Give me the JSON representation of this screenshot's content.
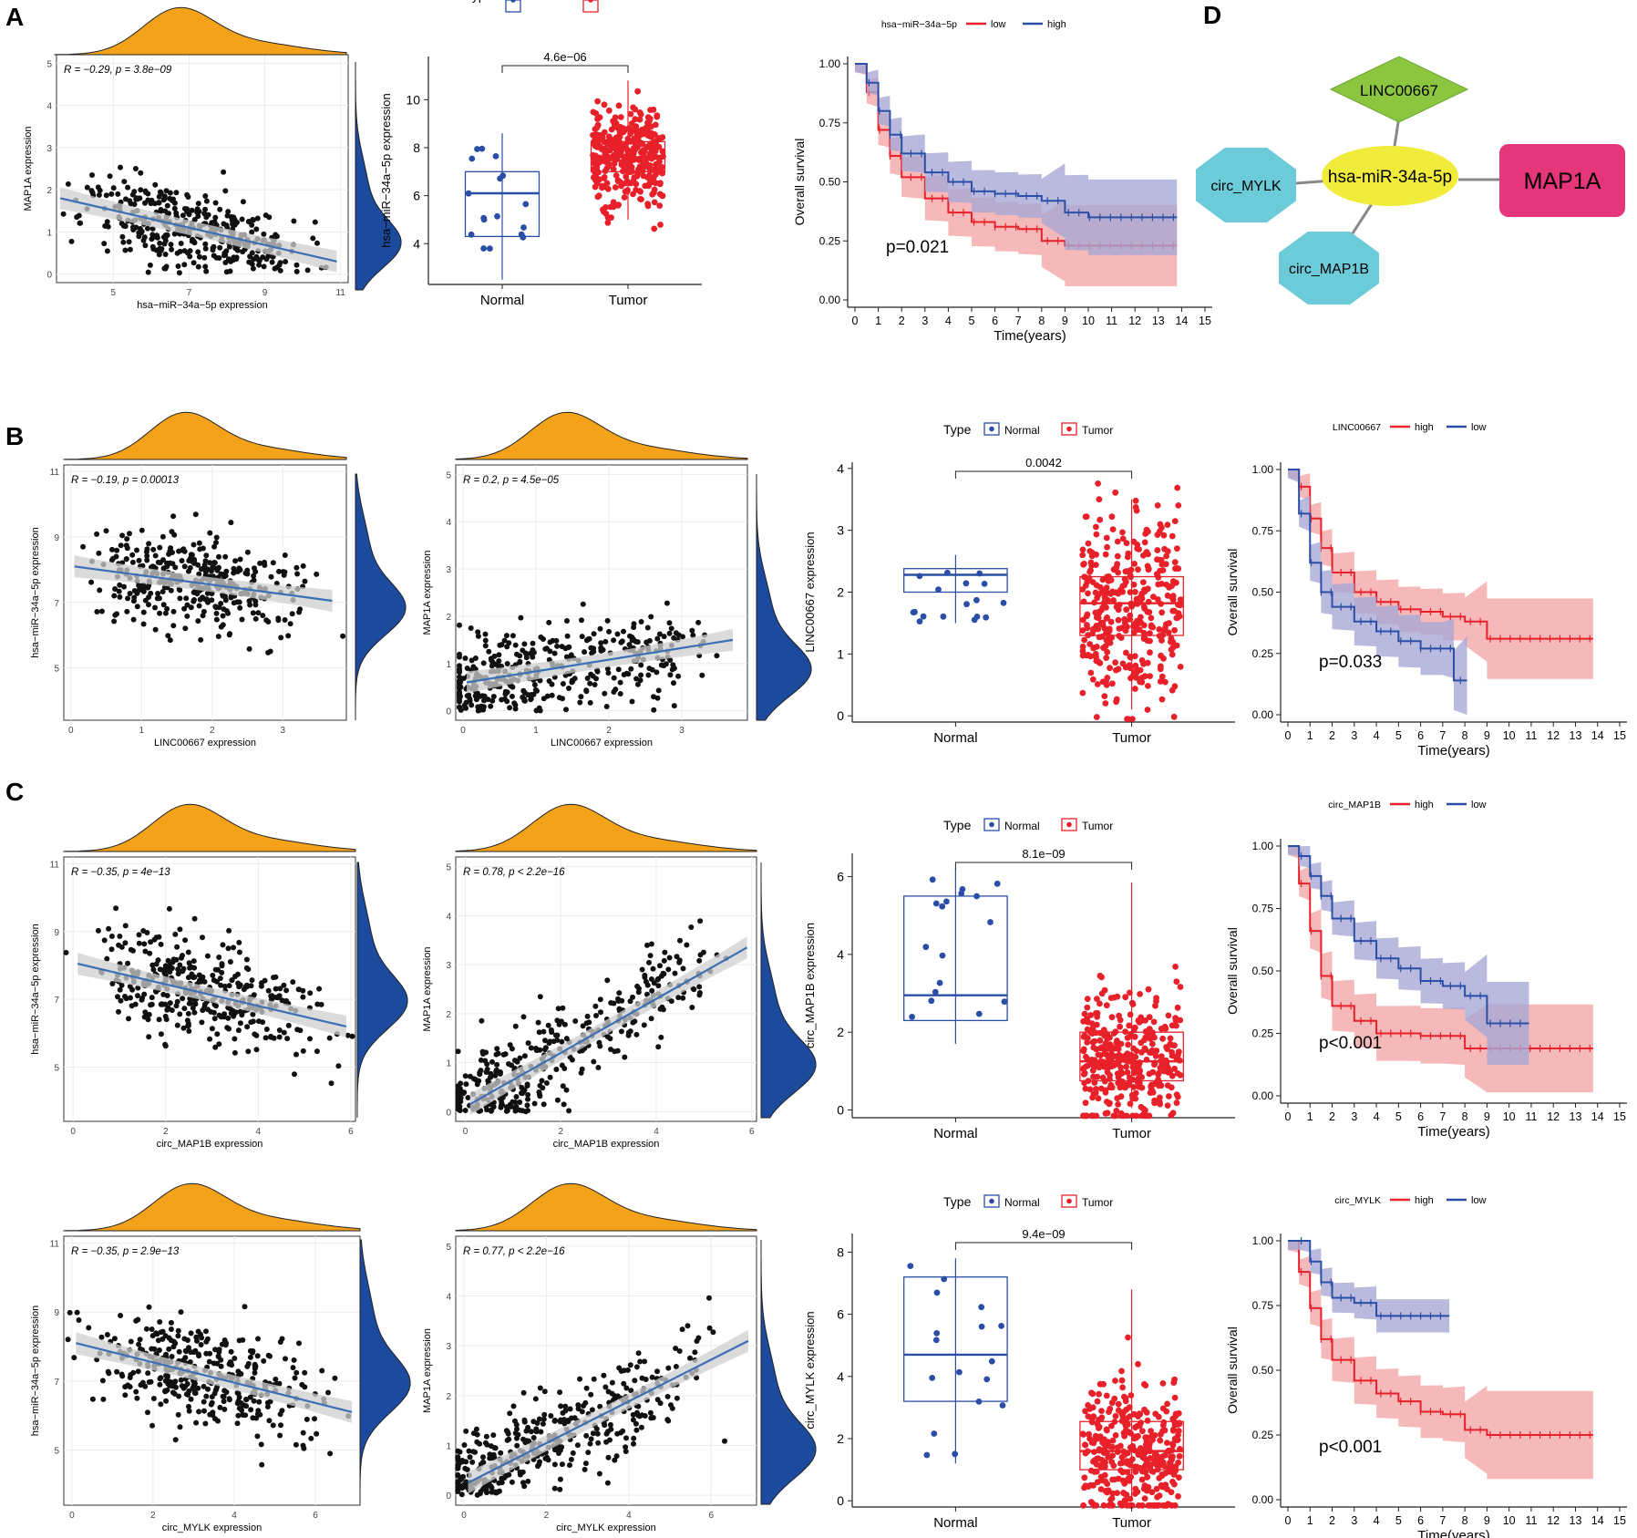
{
  "panel_labels": [
    "A",
    "B",
    "C",
    "D"
  ],
  "colors": {
    "normal": "#2a4ea6",
    "tumor": "#e8202a",
    "km_red": "#e8202a",
    "km_blue": "#2b4fa6",
    "km_red_fill": "#f3a7a9",
    "km_blue_fill": "#a9a7d6",
    "density_top": "#f5a21b",
    "density_right": "#1c4a9c",
    "fit_line": "#3b6fb6",
    "fit_band": "#cfcfcf",
    "node_lncrna": "#8cc63f",
    "node_mirna": "#f1ec3b",
    "node_mrna": "#e5357b",
    "node_circ": "#6ccbd8"
  },
  "network": {
    "mirna": "hsa-miR-34a-5p",
    "mrna": "MAP1A",
    "lncrna": "LINC00667",
    "circ1": "circ_MYLK",
    "circ2": "circ_MAP1B"
  },
  "chart_data": [
    {
      "id": "A1",
      "type": "scatter",
      "xlabel": "hsa−miR−34a−5p expression",
      "ylabel": "MAP1A expression",
      "annotation": "R = −0.29, p = 3.8e−09",
      "xlim": [
        3.5,
        11.2
      ],
      "ylim": [
        -0.2,
        5.2
      ],
      "xticks": [
        5,
        7,
        9,
        11
      ],
      "yticks": [
        0,
        1,
        2,
        3,
        4,
        5
      ],
      "fit": {
        "x": [
          3.6,
          10.9
        ],
        "y": [
          1.8,
          0.3
        ]
      },
      "trend": "negative"
    },
    {
      "id": "A2",
      "type": "box",
      "categories": [
        "Normal",
        "Tumor"
      ],
      "legend_title": "Type",
      "ylabel": "hsa−miR−34a−5p expression",
      "ylim": [
        2.3,
        11.8
      ],
      "yticks": [
        4,
        6,
        8,
        10
      ],
      "pvalue": "4.6e−06",
      "boxes": [
        {
          "q1": 4.3,
          "median": 6.1,
          "q3": 7.0,
          "min": 2.5,
          "max": 8.6
        },
        {
          "q1": 7.0,
          "median": 7.6,
          "q3": 8.25,
          "min": 5.0,
          "max": 10.8
        }
      ]
    },
    {
      "id": "A3",
      "type": "km",
      "legend_title": "hsa−miR−34a−5p",
      "groups": [
        "low",
        "high"
      ],
      "pvalue": "p=0.021",
      "xlabel": "Time(years)",
      "ylabel": "Overall survival",
      "xticks": [
        0,
        1,
        2,
        3,
        4,
        5,
        6,
        7,
        8,
        9,
        10,
        11,
        12,
        13,
        14,
        15
      ],
      "yticks": [
        "0.00",
        "0.25",
        "0.50",
        "0.75",
        "1.00"
      ],
      "curves": [
        {
          "name": "low",
          "x": [
            0,
            0.5,
            1,
            1.5,
            2,
            3,
            4,
            5,
            6,
            7,
            8,
            9,
            10,
            12,
            13.8
          ],
          "y": [
            1,
            0.88,
            0.72,
            0.61,
            0.52,
            0.43,
            0.37,
            0.33,
            0.31,
            0.3,
            0.25,
            0.23,
            0.23,
            0.23,
            0.23
          ]
        },
        {
          "name": "high",
          "x": [
            0,
            0.5,
            1,
            1.5,
            2,
            3,
            4,
            5,
            6,
            7,
            8,
            9,
            10,
            12,
            13.8
          ],
          "y": [
            1,
            0.92,
            0.8,
            0.7,
            0.62,
            0.54,
            0.5,
            0.46,
            0.45,
            0.44,
            0.42,
            0.37,
            0.35,
            0.35,
            0.35
          ]
        }
      ]
    },
    {
      "id": "B1",
      "type": "scatter",
      "xlabel": "LINC00667 expression",
      "ylabel": "hsa−miR−34a−5p expression",
      "annotation": "R = −0.19, p = 0.00013",
      "xlim": [
        -0.1,
        3.9
      ],
      "ylim": [
        3.4,
        11.2
      ],
      "xticks": [
        0,
        1,
        2,
        3
      ],
      "yticks": [
        5,
        7,
        9,
        11
      ],
      "fit": {
        "x": [
          0.05,
          3.7
        ],
        "y": [
          8.1,
          7.05
        ]
      },
      "trend": "negative"
    },
    {
      "id": "B2",
      "type": "scatter",
      "xlabel": "LINC00667 expression",
      "ylabel": "MAP1A expression",
      "annotation": "R = 0.2, p = 4.5e−05",
      "xlim": [
        -0.1,
        3.9
      ],
      "ylim": [
        -0.2,
        5.2
      ],
      "xticks": [
        0,
        1,
        2,
        3
      ],
      "yticks": [
        0,
        1,
        2,
        3,
        4,
        5
      ],
      "fit": {
        "x": [
          0.05,
          3.7
        ],
        "y": [
          0.6,
          1.5
        ]
      },
      "trend": "positive"
    },
    {
      "id": "B3",
      "type": "box",
      "categories": [
        "Normal",
        "Tumor"
      ],
      "legend_title": "Type",
      "ylabel": "LINC00667 expression",
      "ylim": [
        -0.1,
        4.1
      ],
      "yticks": [
        0,
        1,
        2,
        3,
        4
      ],
      "pvalue": "0.0042",
      "boxes": [
        {
          "q1": 2.0,
          "median": 2.28,
          "q3": 2.38,
          "min": 1.5,
          "max": 2.6
        },
        {
          "q1": 1.3,
          "median": 1.82,
          "q3": 2.25,
          "min": 0.1,
          "max": 3.5
        }
      ]
    },
    {
      "id": "B4",
      "type": "km",
      "legend_title": "LINC00667",
      "groups": [
        "high",
        "low"
      ],
      "pvalue": "p=0.033",
      "xlabel": "Time(years)",
      "ylabel": "Overall survival",
      "xticks": [
        0,
        1,
        2,
        3,
        4,
        5,
        6,
        7,
        8,
        9,
        10,
        11,
        12,
        13,
        14,
        15
      ],
      "yticks": [
        "0.00",
        "0.25",
        "0.50",
        "0.75",
        "1.00"
      ],
      "curves": [
        {
          "name": "high",
          "x": [
            0,
            0.5,
            1,
            1.5,
            2,
            3,
            4,
            5,
            6,
            7,
            8,
            9,
            10,
            12,
            13.8
          ],
          "y": [
            1,
            0.93,
            0.8,
            0.68,
            0.58,
            0.5,
            0.46,
            0.43,
            0.42,
            0.4,
            0.38,
            0.31,
            0.31,
            0.31,
            0.31
          ]
        },
        {
          "name": "low",
          "x": [
            0,
            0.5,
            1,
            1.5,
            2,
            3,
            4,
            5,
            6,
            7,
            7.5,
            8.1
          ],
          "y": [
            1,
            0.82,
            0.62,
            0.5,
            0.44,
            0.38,
            0.34,
            0.3,
            0.27,
            0.27,
            0.14,
            0.14
          ]
        }
      ]
    },
    {
      "id": "C1",
      "type": "scatter",
      "xlabel": "circ_MAP1B expression",
      "ylabel": "hsa−miR−34a−5p expression",
      "annotation": "R = −0.35, p = 4e−13",
      "xlim": [
        -0.2,
        6.1
      ],
      "ylim": [
        3.4,
        11.2
      ],
      "xticks": [
        0,
        2,
        4,
        6
      ],
      "yticks": [
        5,
        7,
        9,
        11
      ],
      "fit": {
        "x": [
          0.1,
          5.9
        ],
        "y": [
          8.05,
          6.2
        ]
      },
      "trend": "negative"
    },
    {
      "id": "C2",
      "type": "scatter",
      "xlabel": "circ_MAP1B expression",
      "ylabel": "MAP1A expression",
      "annotation": "R = 0.78, p < 2.2e−16",
      "xlim": [
        -0.2,
        6.1
      ],
      "ylim": [
        -0.2,
        5.2
      ],
      "xticks": [
        0,
        2,
        4,
        6
      ],
      "yticks": [
        0,
        1,
        2,
        3,
        4,
        5
      ],
      "fit": {
        "x": [
          0.1,
          5.9
        ],
        "y": [
          0.15,
          3.35
        ]
      },
      "trend": "positive"
    },
    {
      "id": "C3",
      "type": "box",
      "categories": [
        "Normal",
        "Tumor"
      ],
      "legend_title": "Type",
      "ylabel": "circ_MAP1B expression",
      "ylim": [
        -0.2,
        6.6
      ],
      "yticks": [
        0,
        2,
        4,
        6
      ],
      "pvalue": "8.1e−09",
      "boxes": [
        {
          "q1": 2.3,
          "median": 2.95,
          "q3": 5.5,
          "min": 1.7,
          "max": 6.2
        },
        {
          "q1": 0.75,
          "median": 1.25,
          "q3": 2.0,
          "min": 0.05,
          "max": 5.85
        }
      ]
    },
    {
      "id": "C4",
      "type": "km",
      "legend_title": "circ_MAP1B",
      "groups": [
        "high",
        "low"
      ],
      "pvalue": "p<0.001",
      "xlabel": "Time(years)",
      "ylabel": "Overall survival",
      "xticks": [
        0,
        1,
        2,
        3,
        4,
        5,
        6,
        7,
        8,
        9,
        10,
        11,
        12,
        13,
        14,
        15
      ],
      "yticks": [
        "0.00",
        "0.25",
        "0.50",
        "0.75",
        "1.00"
      ],
      "curves": [
        {
          "name": "high",
          "x": [
            0,
            0.5,
            1,
            1.5,
            2,
            3,
            4,
            5,
            6,
            7,
            8,
            9,
            10,
            12,
            13.8
          ],
          "y": [
            1,
            0.85,
            0.66,
            0.48,
            0.36,
            0.3,
            0.25,
            0.25,
            0.24,
            0.24,
            0.19,
            0.19,
            0.19,
            0.19,
            0.19
          ]
        },
        {
          "name": "low",
          "x": [
            0,
            0.5,
            1,
            1.5,
            2,
            3,
            4,
            5,
            6,
            7,
            8,
            9,
            10,
            10.9
          ],
          "y": [
            1,
            0.96,
            0.88,
            0.8,
            0.71,
            0.62,
            0.55,
            0.51,
            0.46,
            0.44,
            0.4,
            0.29,
            0.29,
            0.29
          ]
        }
      ]
    },
    {
      "id": "C5",
      "type": "scatter",
      "xlabel": "circ_MYLK expression",
      "ylabel": "hsa−miR−34a−5p expression",
      "annotation": "R = −0.35, p = 2.9e−13",
      "xlim": [
        -0.2,
        7.1
      ],
      "ylim": [
        3.4,
        11.2
      ],
      "xticks": [
        0,
        2,
        4,
        6
      ],
      "yticks": [
        5,
        7,
        9,
        11
      ],
      "fit": {
        "x": [
          0.1,
          6.9
        ],
        "y": [
          8.1,
          6.1
        ]
      },
      "trend": "negative"
    },
    {
      "id": "C6",
      "type": "scatter",
      "xlabel": "circ_MYLK expression",
      "ylabel": "MAP1A expression",
      "annotation": "R = 0.77, p < 2.2e−16",
      "xlim": [
        -0.2,
        7.1
      ],
      "ylim": [
        -0.2,
        5.2
      ],
      "xticks": [
        0,
        2,
        4,
        6
      ],
      "yticks": [
        0,
        1,
        2,
        3,
        4,
        5
      ],
      "fit": {
        "x": [
          0.1,
          6.9
        ],
        "y": [
          0.25,
          3.1
        ]
      },
      "trend": "positive"
    },
    {
      "id": "C7",
      "type": "box",
      "categories": [
        "Normal",
        "Tumor"
      ],
      "legend_title": "Type",
      "ylabel": "circ_MYLK expression",
      "ylim": [
        -0.2,
        8.6
      ],
      "yticks": [
        0,
        2,
        4,
        6,
        8
      ],
      "pvalue": "9.4e−09",
      "boxes": [
        {
          "q1": 3.2,
          "median": 4.7,
          "q3": 7.2,
          "min": 1.2,
          "max": 7.8
        },
        {
          "q1": 1.0,
          "median": 1.6,
          "q3": 2.55,
          "min": 0.05,
          "max": 6.8
        }
      ]
    },
    {
      "id": "C8",
      "type": "km",
      "legend_title": "circ_MYLK",
      "groups": [
        "high",
        "low"
      ],
      "pvalue": "p<0.001",
      "xlabel": "Time(years)",
      "ylabel": "Overall survival",
      "xticks": [
        0,
        1,
        2,
        3,
        4,
        5,
        6,
        7,
        8,
        9,
        10,
        11,
        12,
        13,
        14,
        15
      ],
      "yticks": [
        "0.00",
        "0.25",
        "0.50",
        "0.75",
        "1.00"
      ],
      "curves": [
        {
          "name": "high",
          "x": [
            0,
            0.5,
            1,
            1.5,
            2,
            3,
            4,
            5,
            6,
            7,
            8,
            9,
            10,
            12,
            13.8
          ],
          "y": [
            1,
            0.88,
            0.74,
            0.62,
            0.54,
            0.46,
            0.41,
            0.38,
            0.34,
            0.33,
            0.27,
            0.25,
            0.25,
            0.25,
            0.25
          ]
        },
        {
          "name": "low",
          "x": [
            0,
            0.5,
            1,
            1.5,
            2,
            3,
            4,
            5,
            6,
            7.3
          ],
          "y": [
            1,
            1,
            0.92,
            0.84,
            0.78,
            0.76,
            0.71,
            0.71,
            0.71,
            0.71
          ]
        }
      ]
    }
  ]
}
